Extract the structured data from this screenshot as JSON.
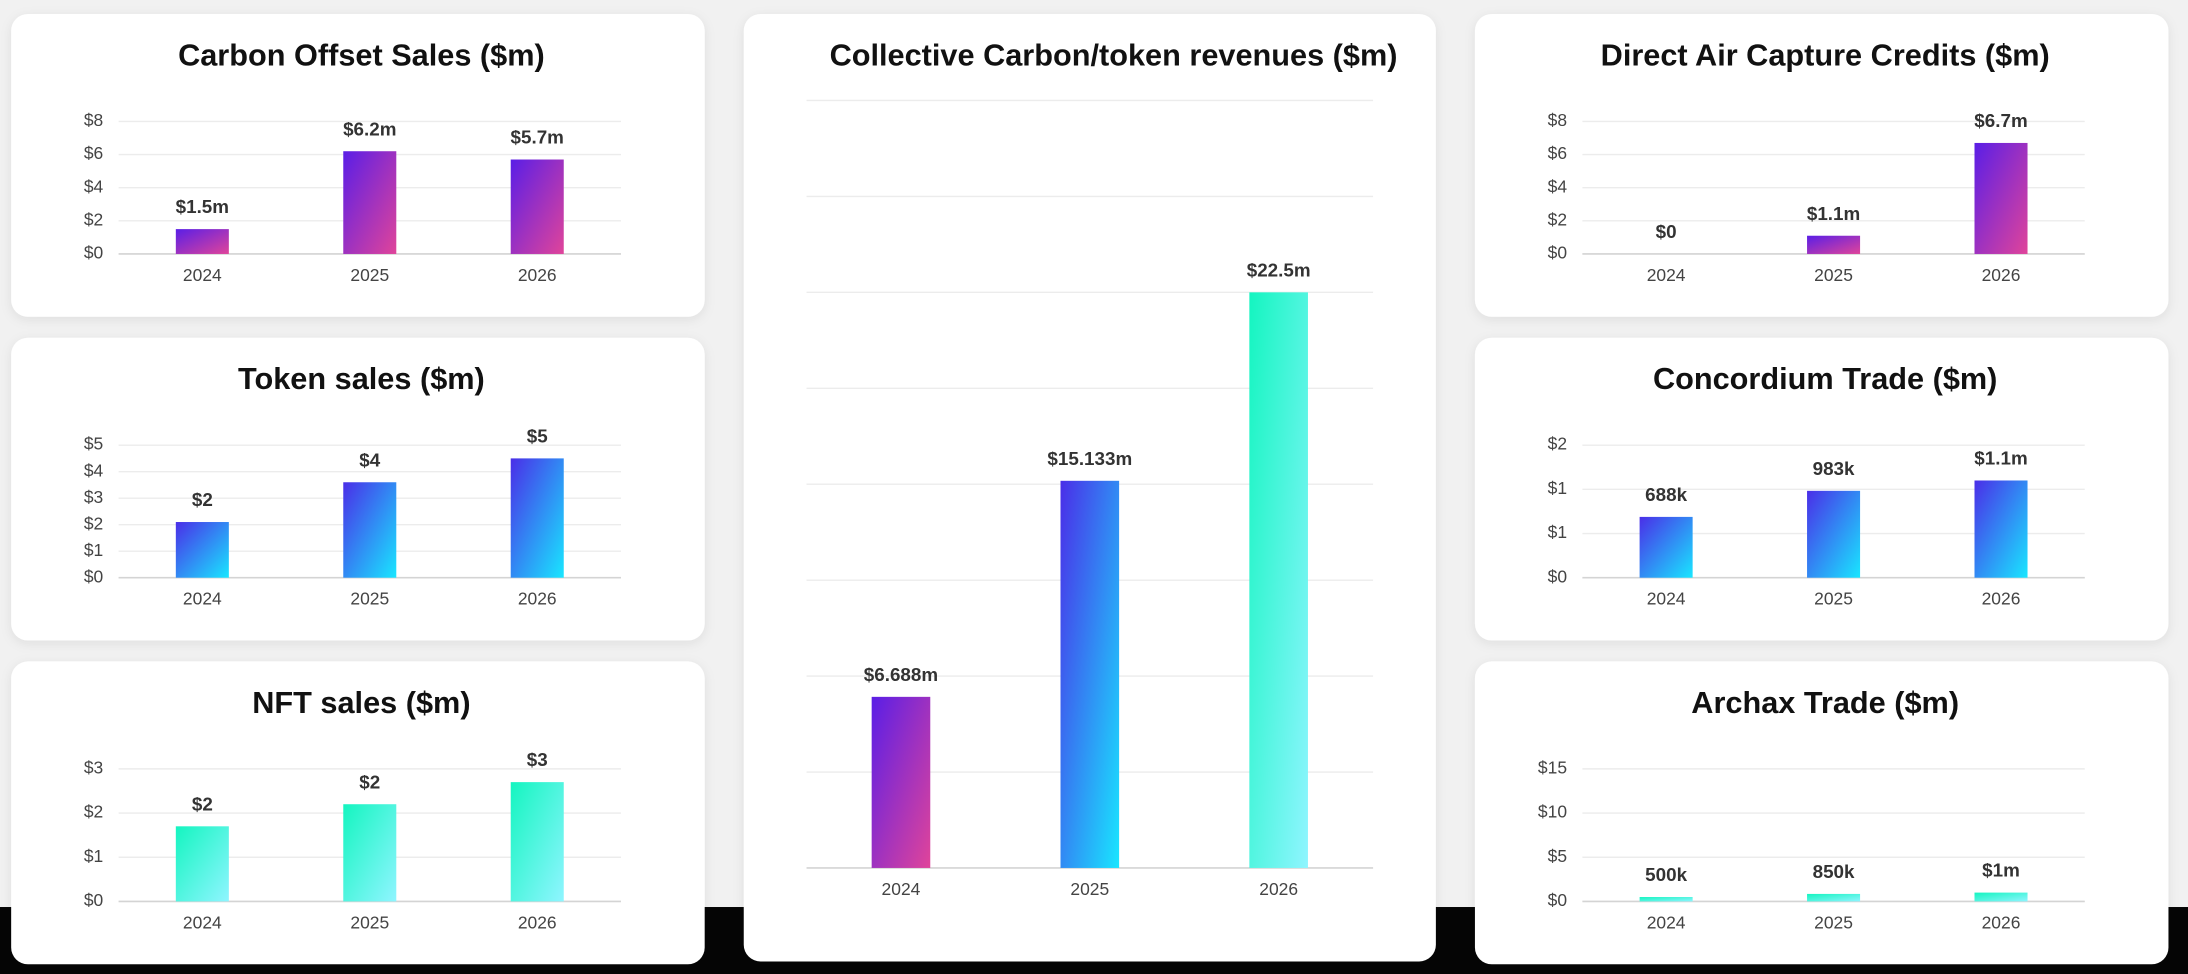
{
  "chart_data": [
    {
      "type": "bar",
      "title": "Carbon Offset Sales ($m)",
      "categories": [
        "2024",
        "2025",
        "2026"
      ],
      "values": [
        1.5,
        6.2,
        5.7
      ],
      "value_labels": [
        "$1.5m",
        "$6.2m",
        "$5.7m"
      ],
      "gradient": [
        "#5a1ee6",
        "#e0449a"
      ],
      "ylim": [
        0,
        8
      ],
      "yticks": [
        {
          "value": 0,
          "label": "$0"
        },
        {
          "value": 2,
          "label": "$2"
        },
        {
          "value": 4,
          "label": "$4"
        },
        {
          "value": 6,
          "label": "$6"
        },
        {
          "value": 8,
          "label": "$8"
        }
      ],
      "grid": true
    },
    {
      "type": "bar",
      "title": "Token sales ($m)",
      "categories": [
        "2024",
        "2025",
        "2026"
      ],
      "values": [
        2.1,
        3.6,
        4.5
      ],
      "value_labels": [
        "$2",
        "$4",
        "$5"
      ],
      "gradient": [
        "#4a2ee8",
        "#19e6ff"
      ],
      "ylim": [
        0,
        5
      ],
      "yticks": [
        {
          "value": 0,
          "label": "$0"
        },
        {
          "value": 1,
          "label": "$1"
        },
        {
          "value": 2,
          "label": "$2"
        },
        {
          "value": 3,
          "label": "$3"
        },
        {
          "value": 4,
          "label": "$4"
        },
        {
          "value": 5,
          "label": "$5"
        }
      ],
      "grid": true
    },
    {
      "type": "bar",
      "title": "NFT sales ($m)",
      "categories": [
        "2024",
        "2025",
        "2026"
      ],
      "values": [
        1.7,
        2.2,
        2.7
      ],
      "value_labels": [
        "$2",
        "$2",
        "$3"
      ],
      "gradient": [
        "#14f5c0",
        "#8ff5ff"
      ],
      "ylim": [
        0,
        3
      ],
      "yticks": [
        {
          "value": 0,
          "label": "$0"
        },
        {
          "value": 1,
          "label": "$1"
        },
        {
          "value": 2,
          "label": "$2"
        },
        {
          "value": 3,
          "label": "$3"
        }
      ],
      "grid": true
    },
    {
      "type": "bar",
      "title": "Collective Carbon/token revenues ($m)",
      "categories": [
        "2024",
        "2025",
        "2026"
      ],
      "values": [
        6.688,
        15.133,
        22.5
      ],
      "value_labels": [
        "$6.688m",
        "$15.133m",
        "$22.5m"
      ],
      "gradients": [
        [
          "#5a1ee6",
          "#e0449a"
        ],
        [
          "#4a2ee8",
          "#19e6ff"
        ],
        [
          "#14f5c0",
          "#8ff5ff"
        ]
      ],
      "ylim": [
        0,
        30
      ],
      "grid": true
    },
    {
      "type": "bar",
      "title": "Direct Air Capture Credits ($m)",
      "categories": [
        "2024",
        "2025",
        "2026"
      ],
      "values": [
        0,
        1.1,
        6.7
      ],
      "value_labels": [
        "$0",
        "$1.1m",
        "$6.7m"
      ],
      "gradient": [
        "#5a1ee6",
        "#e0449a"
      ],
      "ylim": [
        0,
        8
      ],
      "yticks": [
        {
          "value": 0,
          "label": "$0"
        },
        {
          "value": 2,
          "label": "$2"
        },
        {
          "value": 4,
          "label": "$4"
        },
        {
          "value": 6,
          "label": "$6"
        },
        {
          "value": 8,
          "label": "$8"
        }
      ],
      "grid": true
    },
    {
      "type": "bar",
      "title": "Concordium Trade ($m)",
      "categories": [
        "2024",
        "2025",
        "2026"
      ],
      "values": [
        0.688,
        0.983,
        1.1
      ],
      "value_labels": [
        "688k",
        "983k",
        "$1.1m"
      ],
      "gradient": [
        "#4a2ee8",
        "#19e6ff"
      ],
      "ylim": [
        0,
        1.5
      ],
      "yticks": [
        {
          "value": 0,
          "label": "$0"
        },
        {
          "value": 0.5,
          "label": "$1"
        },
        {
          "value": 1,
          "label": "$1"
        },
        {
          "value": 1.5,
          "label": "$2"
        }
      ],
      "grid": true
    },
    {
      "type": "bar",
      "title": "Archax Trade ($m)",
      "categories": [
        "2024",
        "2025",
        "2026"
      ],
      "values": [
        0.5,
        0.85,
        1
      ],
      "value_labels": [
        "500k",
        "850k",
        "$1m"
      ],
      "gradient": [
        "#14f5c0",
        "#8ff5ff"
      ],
      "ylim": [
        0,
        15
      ],
      "yticks": [
        {
          "value": 0,
          "label": "$0"
        },
        {
          "value": 5,
          "label": "$5"
        },
        {
          "value": 10,
          "label": "$10"
        },
        {
          "value": 15,
          "label": "$15"
        }
      ],
      "grid": true
    }
  ]
}
